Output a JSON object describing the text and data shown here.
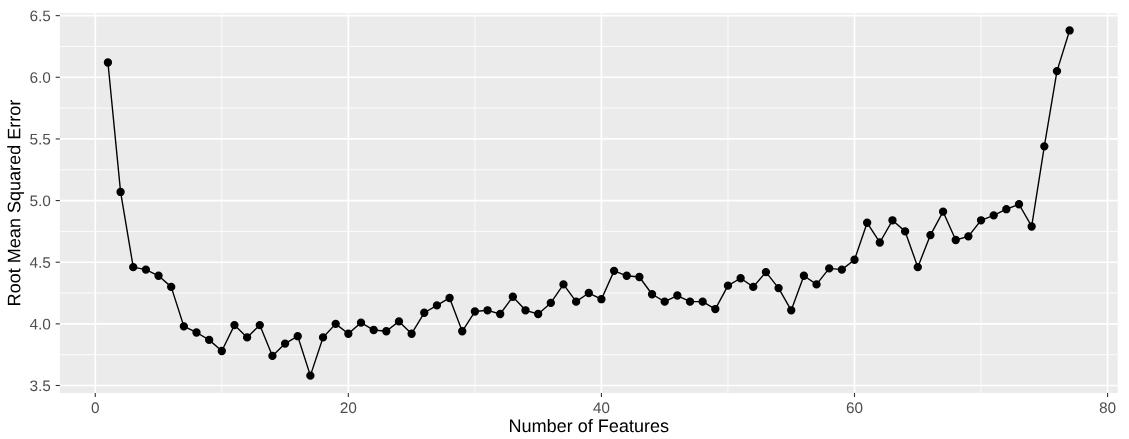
{
  "chart_data": {
    "type": "line",
    "xlabel": "Number of Features",
    "ylabel": "Root Mean Squared Error",
    "x": [
      1,
      2,
      3,
      4,
      5,
      6,
      7,
      8,
      9,
      10,
      11,
      12,
      13,
      14,
      15,
      16,
      17,
      18,
      19,
      20,
      21,
      22,
      23,
      24,
      25,
      26,
      27,
      28,
      29,
      30,
      31,
      32,
      33,
      34,
      35,
      36,
      37,
      38,
      39,
      40,
      41,
      42,
      43,
      44,
      45,
      46,
      47,
      48,
      49,
      50,
      51,
      52,
      53,
      54,
      55,
      56,
      57,
      58,
      59,
      60,
      61,
      62,
      63,
      64,
      65,
      66,
      67,
      68,
      69,
      70,
      71,
      72,
      73,
      74,
      75,
      76,
      77
    ],
    "series": [
      {
        "color": "#000000",
        "values": [
          6.12,
          5.07,
          4.46,
          4.44,
          4.39,
          4.3,
          3.98,
          3.93,
          3.87,
          3.78,
          3.99,
          3.89,
          3.99,
          3.74,
          3.84,
          3.9,
          3.58,
          3.89,
          4.0,
          3.92,
          4.01,
          3.95,
          3.94,
          4.02,
          3.92,
          4.09,
          4.15,
          4.21,
          3.94,
          4.1,
          4.11,
          4.08,
          4.22,
          4.11,
          4.08,
          4.17,
          4.32,
          4.18,
          4.25,
          4.2,
          4.43,
          4.39,
          4.38,
          4.24,
          4.18,
          4.23,
          4.18,
          4.18,
          4.12,
          4.31,
          4.37,
          4.3,
          4.42,
          4.29,
          4.11,
          4.39,
          4.32,
          4.45,
          4.44,
          4.52,
          4.82,
          4.66,
          4.84,
          4.75,
          4.46,
          4.72,
          4.91,
          4.68,
          4.71,
          4.84,
          4.88,
          4.93,
          4.97,
          4.79,
          5.44,
          6.05,
          6.38
        ]
      }
    ],
    "xlim": [
      -2.8,
      80.8
    ],
    "ylim": [
      3.44,
      6.52
    ],
    "xticks": [
      0,
      20,
      40,
      60,
      80
    ],
    "yticks": [
      3.5,
      {
        "value": 4,
        "label": "4.0"
      },
      4.5,
      {
        "value": 5,
        "label": "5.0"
      },
      5.5,
      {
        "value": 6,
        "label": "6.0"
      },
      6.5
    ],
    "grid": true,
    "marker": "circle",
    "line_style": "solid"
  }
}
